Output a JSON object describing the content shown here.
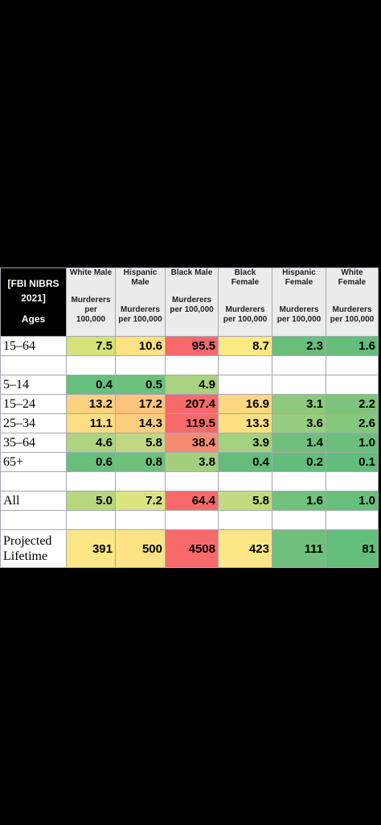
{
  "header": {
    "corner_title": "[FBI NIBRS 2021]",
    "corner_label": "Ages",
    "columns": [
      {
        "name": "White Male",
        "unit": "Murderers per 100,000"
      },
      {
        "name": "Hispanic Male",
        "unit": "Murderers per 100,000"
      },
      {
        "name": "Black Male",
        "unit": "Murderers per 100,000"
      },
      {
        "name": "Black Female",
        "unit": "Murderers per 100,000"
      },
      {
        "name": "Hispanic Female",
        "unit": "Murderers per 100,000"
      },
      {
        "name": "White Female",
        "unit": "Murderers per 100,000"
      }
    ]
  },
  "table": {
    "groups": [
      [
        {
          "label": "15–64",
          "cells": [
            "7.5",
            "10.6",
            "95.5",
            "8.7",
            "2.3",
            "1.6"
          ],
          "colors": [
            "#d7e27a",
            "#fde283",
            "#f8696b",
            "#fbe983",
            "#6abe7b",
            "#63be7b"
          ]
        }
      ],
      [
        {
          "label": "5–14",
          "cells": [
            "0.4",
            "0.5",
            "4.9"
          ],
          "colors": [
            "#66bf7c",
            "#6bc07c",
            "#a9d27f"
          ]
        },
        {
          "label": "15–24",
          "cells": [
            "13.2",
            "17.2",
            "207.4",
            "16.9",
            "3.1",
            "2.2"
          ],
          "colors": [
            "#fdd17f",
            "#fcc47c",
            "#f8696b",
            "#fdd880",
            "#8dca7e",
            "#7cc47d"
          ]
        },
        {
          "label": "25–34",
          "cells": [
            "11.1",
            "14.3",
            "119.5",
            "13.3",
            "3.6",
            "2.6"
          ],
          "colors": [
            "#fede83",
            "#fdcd7e",
            "#f8696b",
            "#fee082",
            "#96cd7e",
            "#84c77d"
          ]
        },
        {
          "label": "35–64",
          "cells": [
            "4.6",
            "5.8",
            "38.4",
            "3.9",
            "1.4",
            "1.0"
          ],
          "colors": [
            "#aed480",
            "#c0d980",
            "#f98b71",
            "#a6d17f",
            "#6fc07c",
            "#69bf7c"
          ]
        },
        {
          "label": "65+",
          "cells": [
            "0.6",
            "0.8",
            "3.8",
            "0.4",
            "0.2",
            "0.1"
          ],
          "colors": [
            "#68be7b",
            "#6ec07c",
            "#a2d07f",
            "#64bd7b",
            "#62bd7b",
            "#61bd7b"
          ]
        }
      ],
      [
        {
          "label": "All",
          "cells": [
            "5.0",
            "7.2",
            "64.4",
            "5.8",
            "1.6",
            "1.0"
          ],
          "colors": [
            "#b7d680",
            "#dce47f",
            "#f8696b",
            "#c2da80",
            "#72c17c",
            "#67bf7c"
          ]
        }
      ],
      [
        {
          "label": "Projected Lifetime",
          "cells": [
            "391",
            "500",
            "4508",
            "423",
            "111",
            "81"
          ],
          "colors": [
            "#fde785",
            "#fde385",
            "#f8696b",
            "#fde686",
            "#6fc07c",
            "#63be7b"
          ]
        }
      ]
    ]
  }
}
